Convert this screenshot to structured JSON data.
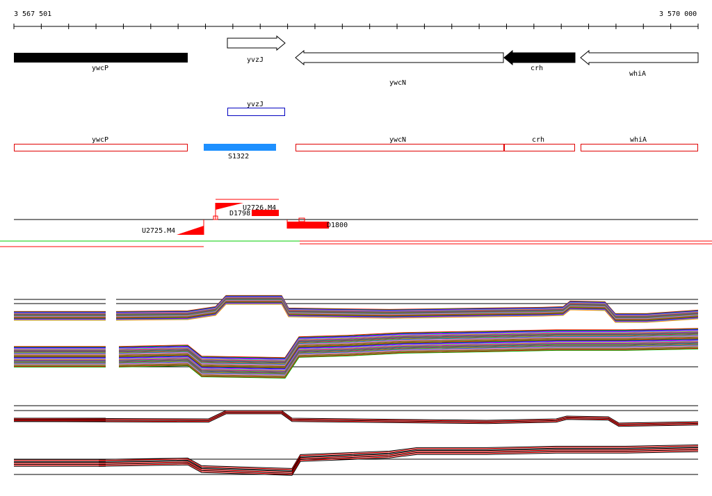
{
  "coordinates": {
    "start": "3 567 501",
    "end": "3 570 000"
  },
  "genes_top": [
    {
      "id": "ywcP",
      "label": "ywcP",
      "style": "solid",
      "dir": "right"
    },
    {
      "id": "yvzJ",
      "label": "yvzJ",
      "style": "outline",
      "dir": "right"
    },
    {
      "id": "ywcN",
      "label": "ywcN",
      "style": "outline",
      "dir": "left"
    },
    {
      "id": "crh",
      "label": "crh",
      "style": "solid",
      "dir": "left"
    },
    {
      "id": "whiA",
      "label": "whiA",
      "style": "outline",
      "dir": "left"
    }
  ],
  "blue_box": {
    "label": "yvzJ"
  },
  "red_boxes": [
    {
      "id": "ywcP",
      "label": "ywcP"
    },
    {
      "id": "ywcN",
      "label": "ywcN"
    },
    {
      "id": "crh",
      "label": "crh"
    },
    {
      "id": "whiA",
      "label": "whiA"
    }
  ],
  "feature": {
    "label": "S1322",
    "color": "#1e90ff"
  },
  "segments": [
    {
      "id": "U2726",
      "label": "U2726.M4"
    },
    {
      "id": "D1798",
      "label": "D1798"
    },
    {
      "id": "U2725",
      "label": "U2725.M4"
    },
    {
      "id": "D1800",
      "label": "D1800"
    }
  ],
  "colors": {
    "gene_fill": "#000000",
    "box_red": "#e00000",
    "box_blue": "#0000c0",
    "segment_red": "#ff0000",
    "green_line": "#00cc00"
  }
}
